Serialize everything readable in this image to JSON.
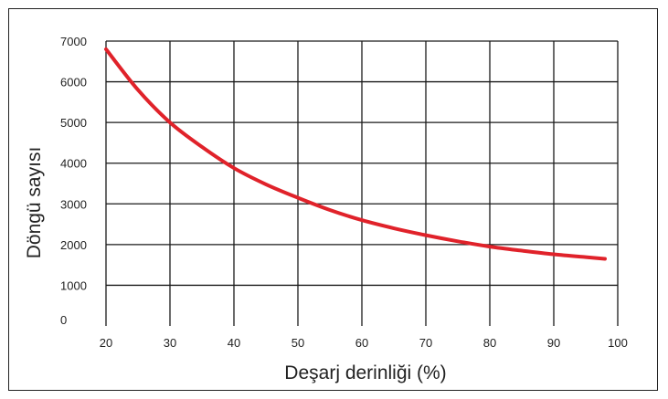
{
  "chart_data": {
    "type": "line",
    "xlabel": "Deşarj derinliği (%)",
    "ylabel": "Döngü sayısı",
    "xlim": [
      20,
      100
    ],
    "ylim": [
      0,
      7000
    ],
    "x_ticks": [
      "20",
      "30",
      "40",
      "50",
      "60",
      "70",
      "80",
      "90",
      "100"
    ],
    "y_ticks": [
      "0",
      "1000",
      "2000",
      "3000",
      "4000",
      "5000",
      "6000",
      "7000"
    ],
    "grid": true,
    "series": [
      {
        "color": "#e0222a",
        "x": [
          20,
          25,
          30,
          35,
          40,
          45,
          50,
          55,
          60,
          65,
          70,
          75,
          80,
          85,
          90,
          95,
          98
        ],
        "y": [
          6800,
          5800,
          5000,
          4400,
          3880,
          3480,
          3150,
          2850,
          2600,
          2400,
          2230,
          2080,
          1950,
          1850,
          1760,
          1690,
          1650
        ]
      }
    ]
  }
}
